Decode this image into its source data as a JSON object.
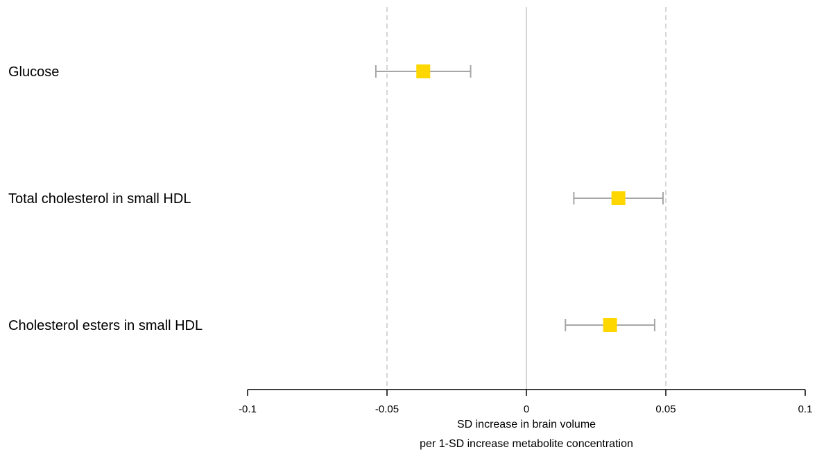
{
  "chart_data": {
    "type": "forest",
    "rows": [
      {
        "label": "Glucose",
        "estimate": -0.037,
        "lower": -0.054,
        "upper": -0.02
      },
      {
        "label": "Total cholesterol in small HDL",
        "estimate": 0.033,
        "lower": 0.017,
        "upper": 0.049
      },
      {
        "label": "Cholesterol esters in small HDL",
        "estimate": 0.03,
        "lower": 0.014,
        "upper": 0.046
      }
    ],
    "xlim": [
      -0.1,
      0.1
    ],
    "x_ticks": [
      -0.1,
      -0.05,
      0,
      0.05,
      0.1
    ],
    "x_tick_labels": [
      "-0.1",
      "-0.05",
      "0",
      "0.05",
      "0.1"
    ],
    "reference_lines": {
      "solid": [
        0
      ],
      "dashed": [
        -0.05,
        0.05
      ]
    },
    "xlabel_line1": "SD increase in brain volume",
    "xlabel_line2": "per 1-SD increase metabolite concentration",
    "colors": {
      "marker": "#FFD700",
      "ci_line": "#A6A6A6",
      "reference_line": "#C8C8C8",
      "axis": "#000000"
    }
  }
}
